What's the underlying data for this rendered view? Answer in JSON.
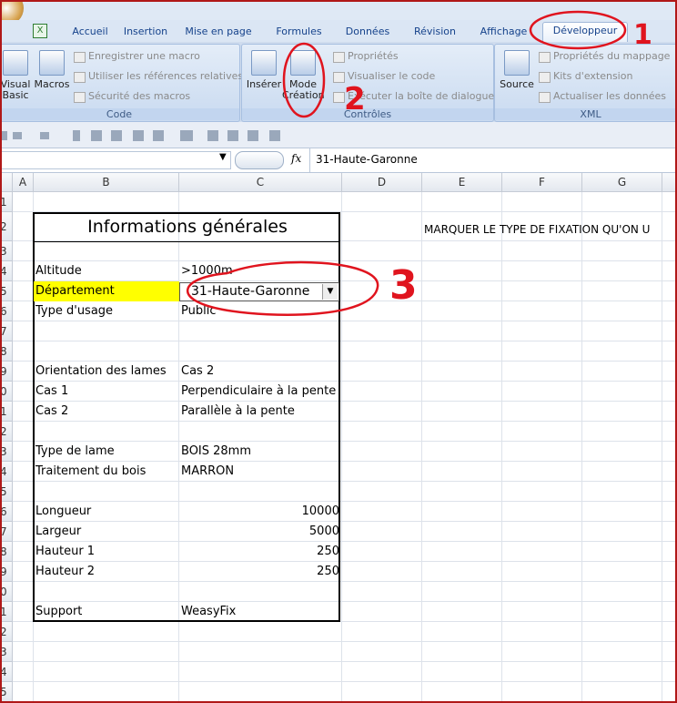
{
  "ribbon": {
    "tabs": [
      "Accueil",
      "Insertion",
      "Mise en page",
      "Formules",
      "Données",
      "Révision",
      "Affichage",
      "Développeur"
    ],
    "groups": [
      {
        "label": "Code",
        "large": [
          "Visual Basic",
          "Macros"
        ],
        "small": [
          "Enregistrer une macro",
          "Utiliser les références relatives",
          "Sécurité des macros"
        ]
      },
      {
        "label": "Contrôles",
        "large": [
          "Insérer",
          "Mode Création"
        ],
        "small": [
          "Propriétés",
          "Visualiser le code",
          "Exécuter la boîte de dialogue"
        ]
      },
      {
        "label": "XML",
        "large": [
          "Source"
        ],
        "small": [
          "Propriétés du mappage",
          "Kits d'extension",
          "Actualiser les données"
        ]
      }
    ]
  },
  "formula_bar": {
    "fx": "fx",
    "value": "31-Haute-Garonne"
  },
  "sheet": {
    "columns": [
      "A",
      "B",
      "C",
      "D",
      "E",
      "F",
      "G"
    ],
    "row_numbers": [
      "1",
      "2",
      "3",
      "4",
      "5",
      "6",
      "7",
      "8",
      "9",
      "0",
      "1",
      "2",
      "3",
      "4",
      "5",
      "6",
      "7",
      "8",
      "9",
      "0",
      "1",
      "2",
      "3",
      "4",
      "5"
    ],
    "note": "MARQUER LE TYPE DE FIXATION QU'ON U",
    "table": {
      "title": "Informations générales",
      "rows": [
        null,
        [
          "Altitude",
          ">1000m"
        ],
        [
          "Département",
          "31-Haute-Garonne"
        ],
        [
          "Type d'usage",
          "Public"
        ],
        null,
        null,
        [
          "Orientation des lames",
          "Cas 2"
        ],
        [
          "Cas 1",
          "Perpendiculaire à la pente"
        ],
        [
          "Cas 2",
          "Parallèle à la pente"
        ],
        null,
        [
          "Type de lame",
          "BOIS 28mm"
        ],
        [
          "Traitement du bois",
          "MARRON"
        ],
        null,
        [
          "Longueur",
          10000
        ],
        [
          "Largeur",
          5000
        ],
        [
          "Hauteur 1",
          250
        ],
        [
          "Hauteur 2",
          250
        ],
        null,
        [
          "Support",
          "WeasyFix"
        ]
      ]
    }
  },
  "annotations": [
    "1",
    "2",
    "3"
  ]
}
